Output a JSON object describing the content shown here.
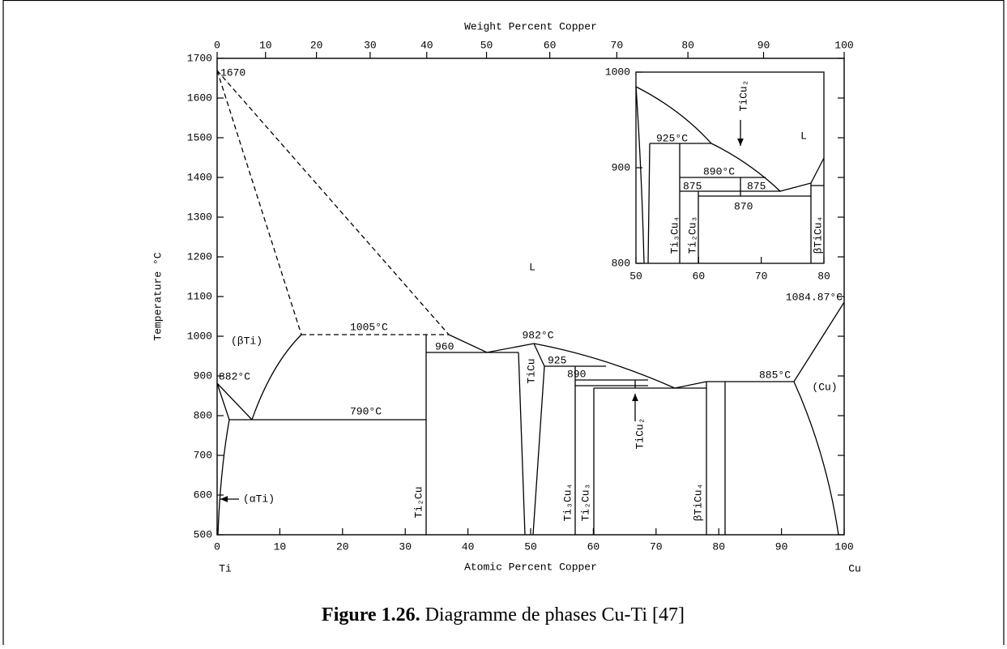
{
  "figure": {
    "top_axis": {
      "title": "Weight Percent Copper",
      "ticks": [
        0,
        10,
        20,
        30,
        40,
        50,
        60,
        70,
        80,
        90,
        100
      ]
    },
    "bottom_axis": {
      "title": "Atomic Percent Copper",
      "ticks": [
        0,
        10,
        20,
        30,
        40,
        50,
        60,
        70,
        80,
        90,
        100
      ],
      "ends": [
        "Ti",
        "Cu"
      ]
    },
    "left_axis": {
      "title": "Temperature °C",
      "ticks": [
        500,
        600,
        700,
        800,
        900,
        1000,
        1100,
        1200,
        1300,
        1400,
        1500,
        1600,
        1700
      ]
    },
    "annotations": [
      "1670",
      "L",
      "(βTi)",
      "1005°C",
      "960",
      "982°C",
      "925",
      "890",
      "885°C",
      "1084.87°C",
      "(Cu)",
      "882°C",
      "790°C",
      "(αTi)",
      "TiCu",
      "Ti₂Cu",
      "Ti₃Cu₄",
      "Ti₂Cu₃",
      "TiCu₂",
      "βTiCu₄"
    ],
    "inset": {
      "xticks": [
        50,
        60,
        70,
        80
      ],
      "yticks": [
        800,
        900,
        1000
      ],
      "annotations": [
        "925°C",
        "890°C",
        "875",
        "875",
        "870",
        "L",
        "TiCu₂",
        "Ti₃Cu₄",
        "Ti₂Cu₃",
        "βTiCu₄"
      ]
    }
  },
  "caption": {
    "number": "Figure 1.26.",
    "text": "Diagramme de phases Cu-Ti [47]"
  }
}
